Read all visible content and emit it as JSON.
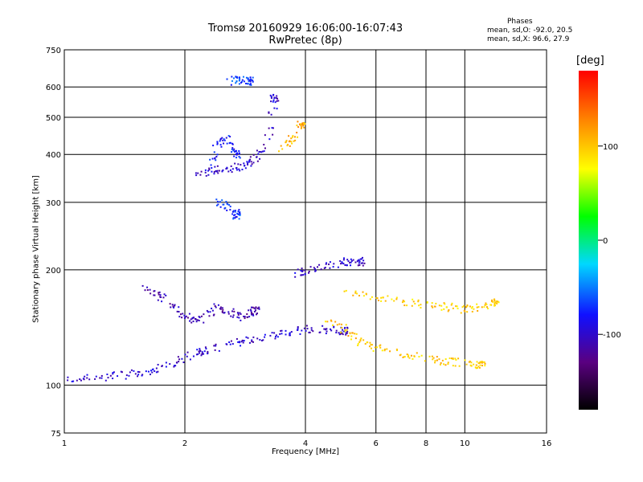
{
  "chart_data": {
    "type": "scatter",
    "title": "Tromsø 20160929 16:06:00-16:07:43",
    "subtitle": "RwPretec (8p)",
    "xlabel": "Frequency [MHz]",
    "ylabel": "Stationary phase Virtual Height [km]",
    "x_scale": "log",
    "y_scale": "log",
    "xlim": [
      1,
      16
    ],
    "ylim": [
      75,
      750
    ],
    "x_ticks": [
      1,
      2,
      4,
      6,
      8,
      10,
      16
    ],
    "y_ticks": [
      75,
      100,
      200,
      300,
      400,
      500,
      600,
      750
    ],
    "grid": true,
    "colorbar": {
      "label": "[deg]",
      "range": [
        -180,
        180
      ],
      "ticks": [
        100,
        0,
        -100
      ]
    },
    "stats": {
      "heading": "Phases",
      "line1": "mean, sd,O:  -92.0, 20.5",
      "line2": "mean, sd,X:  96.6, 27.9"
    },
    "traces": [
      {
        "name": "",
        "x": [
          1.0,
          1.2,
          1.4,
          1.6,
          1.8,
          2.0,
          2.2,
          2.5,
          2.8,
          3.2,
          3.6,
          4.0,
          4.5,
          5.0
        ],
        "y": [
          104,
          105,
          106,
          108,
          112,
          118,
          122,
          126,
          130,
          134,
          137,
          140,
          140,
          138
        ],
        "phase": -100
      },
      {
        "name": "",
        "x": [
          1.6,
          1.75,
          1.9,
          2.05,
          2.2,
          2.4,
          2.6,
          2.8,
          3.0
        ],
        "y": [
          178,
          170,
          158,
          150,
          147,
          160,
          155,
          150,
          156
        ],
        "phase": -110
      },
      {
        "name": "",
        "x": [
          2.1,
          2.35,
          2.6,
          2.8,
          3.0,
          3.2,
          3.35
        ],
        "y": [
          350,
          365,
          368,
          372,
          390,
          420,
          560
        ],
        "phase": -100
      },
      {
        "name": "",
        "x": [
          2.3,
          2.4,
          2.55,
          2.7
        ],
        "y": [
          350,
          420,
          440,
          400
        ],
        "phase": -80
      },
      {
        "name": "",
        "x": [
          2.4,
          2.55,
          2.7
        ],
        "y": [
          300,
          290,
          278
        ],
        "phase": -70
      },
      {
        "name": "",
        "x": [
          2.6,
          2.75,
          2.9
        ],
        "y": [
          620,
          628,
          620
        ],
        "phase": -70
      },
      {
        "name": "",
        "x": [
          3.5,
          3.7,
          3.9
        ],
        "y": [
          410,
          440,
          480
        ],
        "phase": 110
      },
      {
        "name": "",
        "x": [
          3.7,
          4.0,
          4.5,
          5.0,
          5.5
        ],
        "y": [
          195,
          200,
          205,
          210,
          210
        ],
        "phase": -100
      },
      {
        "name": "",
        "x": [
          4.5,
          5.0,
          5.5,
          6.0,
          7.0,
          8.0,
          9.0,
          10.0,
          11.0
        ],
        "y": [
          150,
          140,
          130,
          125,
          120,
          118,
          115,
          114,
          113
        ],
        "phase": 100
      },
      {
        "name": "",
        "x": [
          5.0,
          6.0,
          7.0,
          8.0,
          9.0,
          10.0,
          11.0,
          12.0
        ],
        "y": [
          175,
          170,
          165,
          162,
          160,
          158,
          160,
          165
        ],
        "phase": 95
      }
    ]
  }
}
